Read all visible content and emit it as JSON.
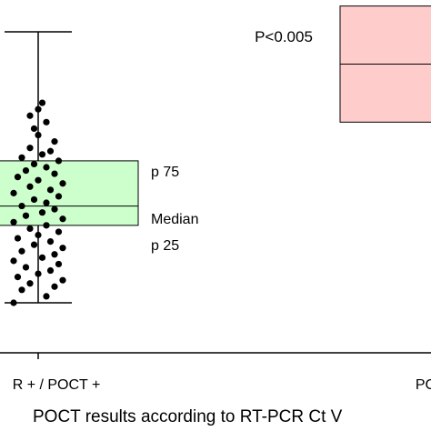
{
  "chart_data": {
    "type": "box",
    "title": "",
    "xlabel": "POCT results according to RT-PCR Ct V",
    "ylabel": "",
    "annotation": "P<0.005",
    "box_labels": {
      "upper": "p 75",
      "median": "Median",
      "lower": "p 25"
    },
    "categories": [
      "R + / POCT +",
      "PC"
    ],
    "groups": [
      {
        "name": "R + / POCT +",
        "whisker_low": 10,
        "q1": 22,
        "median": 25,
        "q3": 32,
        "whisker_high": 52,
        "fill": "#ccffcc",
        "points": [
          {
            "x": -0.3,
            "y": 10
          },
          {
            "x": 0.1,
            "y": 11
          },
          {
            "x": -0.2,
            "y": 12
          },
          {
            "x": 0.2,
            "y": 12.5
          },
          {
            "x": -0.1,
            "y": 13
          },
          {
            "x": 0.3,
            "y": 13.5
          },
          {
            "x": -0.25,
            "y": 14
          },
          {
            "x": 0.0,
            "y": 14.5
          },
          {
            "x": 0.15,
            "y": 15
          },
          {
            "x": -0.15,
            "y": 15.5
          },
          {
            "x": 0.25,
            "y": 16
          },
          {
            "x": -0.3,
            "y": 16.5
          },
          {
            "x": 0.05,
            "y": 17
          },
          {
            "x": 0.2,
            "y": 17.5
          },
          {
            "x": -0.2,
            "y": 18
          },
          {
            "x": 0.3,
            "y": 18.5
          },
          {
            "x": -0.05,
            "y": 19
          },
          {
            "x": 0.15,
            "y": 19.5
          },
          {
            "x": -0.25,
            "y": 20
          },
          {
            "x": 0.0,
            "y": 20.5
          },
          {
            "x": 0.25,
            "y": 21
          },
          {
            "x": -0.1,
            "y": 21.5
          },
          {
            "x": 0.1,
            "y": 22
          },
          {
            "x": -0.3,
            "y": 22.5
          },
          {
            "x": 0.3,
            "y": 23
          },
          {
            "x": -0.15,
            "y": 23.5
          },
          {
            "x": 0.05,
            "y": 24
          },
          {
            "x": 0.2,
            "y": 24.5
          },
          {
            "x": -0.2,
            "y": 25
          },
          {
            "x": 0.1,
            "y": 25.5
          },
          {
            "x": -0.05,
            "y": 26
          },
          {
            "x": 0.25,
            "y": 26.5
          },
          {
            "x": -0.3,
            "y": 27
          },
          {
            "x": 0.15,
            "y": 27.5
          },
          {
            "x": -0.1,
            "y": 28
          },
          {
            "x": 0.3,
            "y": 28.5
          },
          {
            "x": 0.0,
            "y": 29
          },
          {
            "x": -0.25,
            "y": 29.5
          },
          {
            "x": 0.2,
            "y": 30
          },
          {
            "x": -0.15,
            "y": 30.5
          },
          {
            "x": 0.1,
            "y": 31
          },
          {
            "x": -0.05,
            "y": 31.5
          },
          {
            "x": 0.25,
            "y": 32
          },
          {
            "x": -0.2,
            "y": 32.5
          },
          {
            "x": 0.05,
            "y": 33
          },
          {
            "x": 0.15,
            "y": 33.5
          },
          {
            "x": -0.1,
            "y": 34
          },
          {
            "x": 0.2,
            "y": 35
          },
          {
            "x": 0.0,
            "y": 36
          },
          {
            "x": -0.05,
            "y": 37
          },
          {
            "x": 0.1,
            "y": 38
          },
          {
            "x": -0.1,
            "y": 39
          },
          {
            "x": 0.0,
            "y": 40
          },
          {
            "x": 0.05,
            "y": 41
          }
        ]
      },
      {
        "name": "PC",
        "q1": 38,
        "median": 47,
        "q3": 56,
        "fill": "#ffcccc"
      }
    ]
  }
}
